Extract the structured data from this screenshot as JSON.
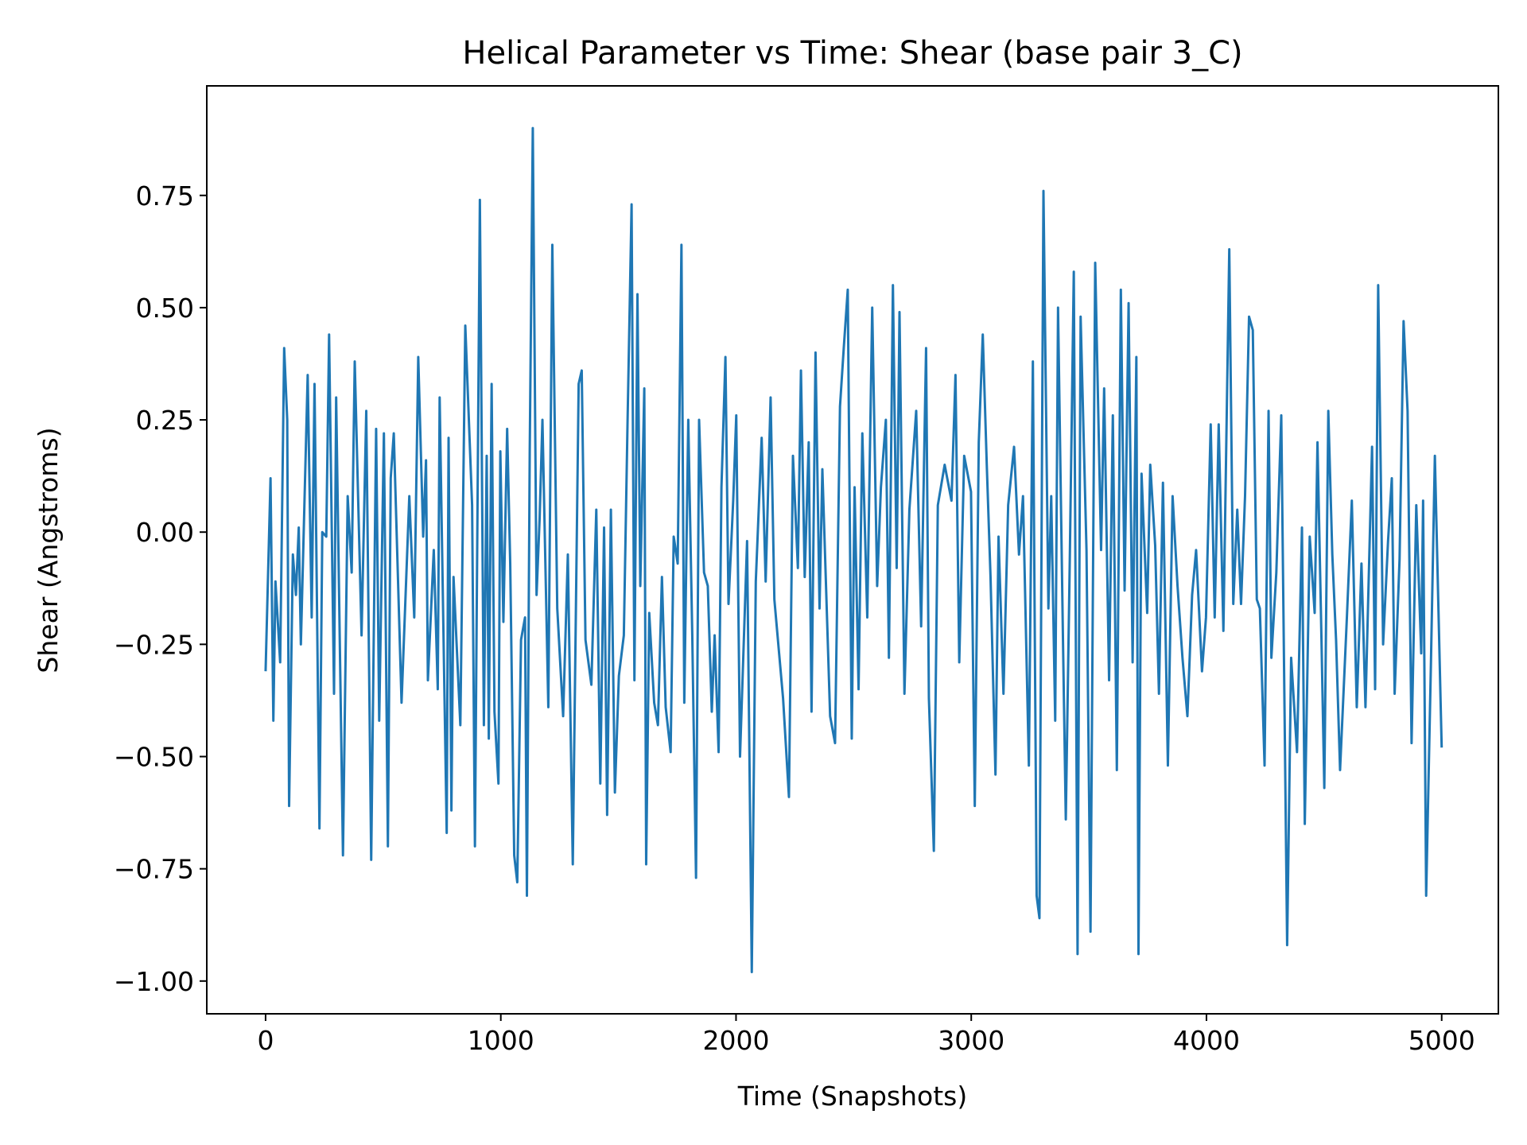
{
  "chart_data": {
    "type": "line",
    "title": "Helical Parameter vs Time: Shear (base pair  3_C)",
    "x_label": "Time (Snapshots)",
    "y_label": "Shear (Angstroms)",
    "xlim": [
      -250,
      5241
    ],
    "ylim": [
      -1.073,
      0.994
    ],
    "xticks": [
      0,
      1000,
      2000,
      3000,
      4000,
      5000
    ],
    "yticks": [
      {
        "value": -1.0,
        "label": "−1.00"
      },
      {
        "value": -0.75,
        "label": "−0.75"
      },
      {
        "value": -0.5,
        "label": "−0.50"
      },
      {
        "value": -0.25,
        "label": "−0.25"
      },
      {
        "value": 0.0,
        "label": "0.00"
      },
      0.25,
      {
        "value": 0.5,
        "label": "0.50"
      },
      0.75
    ],
    "grid": false,
    "series": [
      {
        "color": "#1f77b4",
        "x": [
          0,
          21,
          33,
          42,
          62,
          79,
          92,
          100,
          116,
          129,
          141,
          150,
          179,
          196,
          208,
          229,
          241,
          258,
          270,
          291,
          300,
          329,
          349,
          366,
          379,
          408,
          428,
          449,
          470,
          483,
          503,
          520,
          532,
          545,
          578,
          611,
          632,
          649,
          670,
          682,
          690,
          715,
          732,
          740,
          770,
          778,
          790,
          799,
          828,
          849,
          878,
          890,
          911,
          928,
          940,
          949,
          961,
          973,
          990,
          998,
          1011,
          1027,
          1040,
          1057,
          1070,
          1086,
          1103,
          1111,
          1123,
          1136,
          1152,
          1165,
          1177,
          1202,
          1219,
          1240,
          1265,
          1285,
          1306,
          1331,
          1344,
          1360,
          1385,
          1406,
          1423,
          1439,
          1452,
          1468,
          1485,
          1502,
          1523,
          1539,
          1556,
          1568,
          1581,
          1593,
          1610,
          1618,
          1631,
          1652,
          1668,
          1685,
          1701,
          1722,
          1735,
          1752,
          1768,
          1780,
          1797,
          1814,
          1830,
          1843,
          1864,
          1880,
          1897,
          1909,
          1926,
          1938,
          1955,
          1968,
          1988,
          2001,
          2017,
          2047,
          2067,
          2084,
          2109,
          2126,
          2147,
          2163,
          2200,
          2225,
          2242,
          2263,
          2276,
          2292,
          2309,
          2321,
          2338,
          2355,
          2367,
          2400,
          2421,
          2442,
          2458,
          2475,
          2492,
          2504,
          2521,
          2537,
          2558,
          2579,
          2600,
          2616,
          2637,
          2650,
          2667,
          2683,
          2695,
          2716,
          2737,
          2766,
          2787,
          2808,
          2820,
          2841,
          2858,
          2887,
          2916,
          2933,
          2949,
          2970,
          2999,
          3015,
          3032,
          3049,
          3066,
          3082,
          3103,
          3116,
          3137,
          3157,
          3182,
          3203,
          3220,
          3245,
          3262,
          3278,
          3290,
          3307,
          3328,
          3340,
          3357,
          3369,
          3390,
          3402,
          3419,
          3436,
          3452,
          3465,
          3490,
          3507,
          3527,
          3552,
          3565,
          3586,
          3602,
          3619,
          3636,
          3652,
          3669,
          3686,
          3702,
          3711,
          3724,
          3748,
          3761,
          3782,
          3798,
          3815,
          3836,
          3856,
          3877,
          3898,
          3919,
          3939,
          3956,
          3981,
          3998,
          4018,
          4035,
          4052,
          4072,
          4097,
          4114,
          4131,
          4147,
          4164,
          4181,
          4197,
          4214,
          4227,
          4247,
          4264,
          4276,
          4297,
          4318,
          4343,
          4360,
          4385,
          4406,
          4418,
          4439,
          4460,
          4472,
          4489,
          4501,
          4518,
          4535,
          4551,
          4568,
          4597,
          4618,
          4639,
          4659,
          4676,
          4704,
          4717,
          4730,
          4751,
          4772,
          4788,
          4800,
          4821,
          4838,
          4855,
          4872,
          4892,
          4913,
          4921,
          4934,
          4954,
          4971,
          5000
        ],
        "values": [
          -0.31,
          0.12,
          -0.42,
          -0.11,
          -0.29,
          0.41,
          0.25,
          -0.61,
          -0.05,
          -0.14,
          0.01,
          -0.25,
          0.35,
          -0.19,
          0.33,
          -0.66,
          0.0,
          -0.01,
          0.44,
          -0.36,
          0.3,
          -0.72,
          0.08,
          -0.09,
          0.38,
          -0.23,
          0.27,
          -0.73,
          0.23,
          -0.42,
          0.22,
          -0.7,
          0.12,
          0.22,
          -0.38,
          0.08,
          -0.19,
          0.39,
          -0.01,
          0.16,
          -0.33,
          -0.04,
          -0.35,
          0.3,
          -0.67,
          0.21,
          -0.62,
          -0.1,
          -0.43,
          0.46,
          0.06,
          -0.7,
          0.74,
          -0.43,
          0.17,
          -0.46,
          0.33,
          -0.4,
          -0.56,
          0.18,
          -0.2,
          0.23,
          -0.07,
          -0.72,
          -0.78,
          -0.24,
          -0.19,
          -0.81,
          0.18,
          0.9,
          -0.14,
          0.03,
          0.25,
          -0.39,
          0.64,
          -0.17,
          -0.41,
          -0.05,
          -0.74,
          0.33,
          0.36,
          -0.24,
          -0.34,
          0.05,
          -0.56,
          0.01,
          -0.63,
          0.05,
          -0.58,
          -0.32,
          -0.23,
          0.25,
          0.73,
          -0.33,
          0.53,
          -0.12,
          0.32,
          -0.74,
          -0.18,
          -0.38,
          -0.43,
          -0.1,
          -0.39,
          -0.49,
          -0.01,
          -0.07,
          0.64,
          -0.38,
          0.25,
          -0.23,
          -0.77,
          0.25,
          -0.09,
          -0.12,
          -0.4,
          -0.23,
          -0.49,
          0.1,
          0.39,
          -0.16,
          0.07,
          0.26,
          -0.5,
          -0.02,
          -0.98,
          -0.11,
          0.21,
          -0.11,
          0.3,
          -0.15,
          -0.37,
          -0.59,
          0.17,
          -0.08,
          0.36,
          -0.1,
          0.2,
          -0.4,
          0.4,
          -0.17,
          0.14,
          -0.41,
          -0.47,
          0.28,
          0.41,
          0.54,
          -0.46,
          0.1,
          -0.35,
          0.22,
          -0.19,
          0.5,
          -0.12,
          0.1,
          0.25,
          -0.28,
          0.55,
          -0.08,
          0.49,
          -0.36,
          0.05,
          0.27,
          -0.21,
          0.41,
          -0.37,
          -0.71,
          0.06,
          0.15,
          0.07,
          0.35,
          -0.29,
          0.17,
          0.09,
          -0.61,
          0.2,
          0.44,
          0.15,
          -0.1,
          -0.54,
          -0.01,
          -0.36,
          0.06,
          0.19,
          -0.05,
          0.08,
          -0.52,
          0.38,
          -0.81,
          -0.86,
          0.76,
          -0.17,
          0.08,
          -0.42,
          0.5,
          -0.24,
          -0.64,
          -0.06,
          0.58,
          -0.94,
          0.48,
          -0.04,
          -0.89,
          0.6,
          -0.04,
          0.32,
          -0.33,
          0.26,
          -0.53,
          0.54,
          -0.13,
          0.51,
          -0.29,
          0.39,
          -0.94,
          0.13,
          -0.18,
          0.15,
          -0.03,
          -0.36,
          0.11,
          -0.52,
          0.08,
          -0.12,
          -0.28,
          -0.41,
          -0.14,
          -0.04,
          -0.31,
          -0.19,
          0.24,
          -0.19,
          0.24,
          -0.22,
          0.63,
          -0.16,
          0.05,
          -0.16,
          0.08,
          0.48,
          0.45,
          -0.15,
          -0.17,
          -0.52,
          0.27,
          -0.28,
          -0.09,
          0.26,
          -0.92,
          -0.28,
          -0.49,
          0.01,
          -0.65,
          -0.01,
          -0.18,
          0.2,
          -0.24,
          -0.57,
          0.27,
          -0.05,
          -0.24,
          -0.53,
          -0.19,
          0.07,
          -0.39,
          -0.07,
          -0.39,
          0.19,
          -0.35,
          0.55,
          -0.25,
          -0.02,
          0.12,
          -0.36,
          -0.06,
          0.47,
          0.27,
          -0.47,
          0.06,
          -0.27,
          0.07,
          -0.81,
          -0.3,
          0.17,
          -0.48
        ]
      }
    ]
  }
}
